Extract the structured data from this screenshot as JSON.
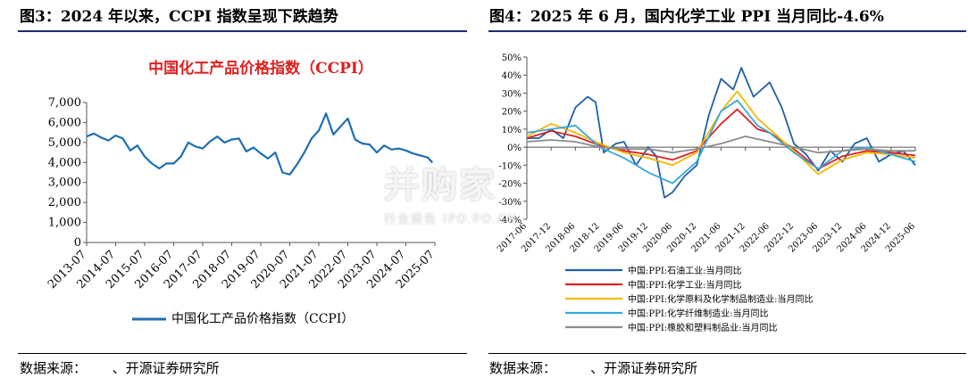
{
  "left": {
    "figure_title": "图3：2024 年以来，CCPI 指数呈现下跌趋势",
    "source": "数据来源：      、开源证券研究所"
  },
  "right": {
    "figure_title": "图4：2025 年 6 月，国内化学工业 PPI 当月同比-4.6%",
    "source": "数据来源：        、开源证券研究所"
  },
  "watermark": {
    "main": "并购家",
    "sub": "行业报告 IPO.PO.CN"
  },
  "chart_data": [
    {
      "type": "line",
      "title": "中国化工产品价格指数（CCPI）",
      "title_color": "#e02020",
      "x_ticks": [
        "2013-07",
        "2014-07",
        "2015-07",
        "2016-07",
        "2017-07",
        "2018-07",
        "2019-07",
        "2020-07",
        "2021-07",
        "2022-07",
        "2023-07",
        "2024-07",
        "2025-07"
      ],
      "xlim": [
        "2013-07",
        "2025-07"
      ],
      "ylim": [
        0,
        7000
      ],
      "y_ticks": [
        "0",
        "1,000",
        "2,000",
        "3,000",
        "4,000",
        "5,000",
        "6,000",
        "7,000"
      ],
      "y_tick_values": [
        0,
        1000,
        2000,
        3000,
        4000,
        5000,
        6000,
        7000
      ],
      "grid": false,
      "legend": "bottom",
      "series": [
        {
          "name": "中国化工产品价格指数（CCPI）",
          "color": "#1f6fb2",
          "points": [
            [
              "2013-07",
              5300
            ],
            [
              "2013-10",
              5450
            ],
            [
              "2014-01",
              5250
            ],
            [
              "2014-04",
              5100
            ],
            [
              "2014-07",
              5350
            ],
            [
              "2014-10",
              5200
            ],
            [
              "2015-01",
              4600
            ],
            [
              "2015-04",
              4850
            ],
            [
              "2015-07",
              4300
            ],
            [
              "2015-10",
              3950
            ],
            [
              "2016-01",
              3700
            ],
            [
              "2016-04",
              3950
            ],
            [
              "2016-07",
              3950
            ],
            [
              "2016-10",
              4300
            ],
            [
              "2017-01",
              5000
            ],
            [
              "2017-04",
              4800
            ],
            [
              "2017-07",
              4700
            ],
            [
              "2017-10",
              5050
            ],
            [
              "2018-01",
              5300
            ],
            [
              "2018-04",
              5000
            ],
            [
              "2018-07",
              5150
            ],
            [
              "2018-10",
              5200
            ],
            [
              "2019-01",
              4550
            ],
            [
              "2019-04",
              4750
            ],
            [
              "2019-07",
              4450
            ],
            [
              "2019-10",
              4200
            ],
            [
              "2020-01",
              4500
            ],
            [
              "2020-04",
              3500
            ],
            [
              "2020-07",
              3400
            ],
            [
              "2020-10",
              3900
            ],
            [
              "2021-01",
              4500
            ],
            [
              "2021-04",
              5200
            ],
            [
              "2021-07",
              5600
            ],
            [
              "2021-10",
              6450
            ],
            [
              "2022-01",
              5400
            ],
            [
              "2022-04",
              5800
            ],
            [
              "2022-07",
              6200
            ],
            [
              "2022-10",
              5150
            ],
            [
              "2023-01",
              4950
            ],
            [
              "2023-04",
              4900
            ],
            [
              "2023-07",
              4500
            ],
            [
              "2023-10",
              4850
            ],
            [
              "2024-01",
              4650
            ],
            [
              "2024-04",
              4700
            ],
            [
              "2024-07",
              4600
            ],
            [
              "2024-10",
              4450
            ],
            [
              "2025-01",
              4350
            ],
            [
              "2025-04",
              4250
            ],
            [
              "2025-06",
              4000
            ]
          ]
        }
      ]
    },
    {
      "type": "line",
      "title": "",
      "x_ticks": [
        "2017-06",
        "2017-12",
        "2018-06",
        "2018-12",
        "2019-06",
        "2019-12",
        "2020-06",
        "2020-12",
        "2021-06",
        "2021-12",
        "2022-06",
        "2022-12",
        "2023-06",
        "2023-12",
        "2024-06",
        "2024-12",
        "2025-06"
      ],
      "xlim": [
        "2017-06",
        "2025-06"
      ],
      "ylim": [
        -40,
        50
      ],
      "y_ticks": [
        "-40%",
        "-30%",
        "-20%",
        "-10%",
        "0%",
        "10%",
        "20%",
        "30%",
        "40%",
        "50%"
      ],
      "y_tick_values": [
        -40,
        -30,
        -20,
        -10,
        0,
        10,
        20,
        30,
        40,
        50
      ],
      "grid": false,
      "legend": "bottom",
      "series": [
        {
          "name": "中国:PPI:石油工业:当月同比",
          "color": "#1f5fa8",
          "points": [
            [
              "2017-06",
              5
            ],
            [
              "2017-09",
              5
            ],
            [
              "2017-12",
              10
            ],
            [
              "2018-03",
              5
            ],
            [
              "2018-06",
              22
            ],
            [
              "2018-09",
              28
            ],
            [
              "2018-11",
              25
            ],
            [
              "2019-01",
              -3
            ],
            [
              "2019-04",
              2
            ],
            [
              "2019-06",
              3
            ],
            [
              "2019-09",
              -10
            ],
            [
              "2019-12",
              0
            ],
            [
              "2020-02",
              -5
            ],
            [
              "2020-04",
              -28
            ],
            [
              "2020-06",
              -25
            ],
            [
              "2020-09",
              -16
            ],
            [
              "2020-12",
              -10
            ],
            [
              "2021-03",
              18
            ],
            [
              "2021-06",
              38
            ],
            [
              "2021-09",
              32
            ],
            [
              "2021-11",
              44
            ],
            [
              "2022-02",
              28
            ],
            [
              "2022-06",
              36
            ],
            [
              "2022-09",
              22
            ],
            [
              "2022-12",
              2
            ],
            [
              "2023-03",
              -4
            ],
            [
              "2023-06",
              -13
            ],
            [
              "2023-09",
              -2
            ],
            [
              "2023-12",
              -8
            ],
            [
              "2024-03",
              2
            ],
            [
              "2024-06",
              5
            ],
            [
              "2024-09",
              -8
            ],
            [
              "2024-12",
              -4
            ],
            [
              "2025-03",
              -2
            ],
            [
              "2025-06",
              -10
            ]
          ]
        },
        {
          "name": "中国:PPI:化学工业:当月同比",
          "color": "#e32020",
          "points": [
            [
              "2017-06",
              5
            ],
            [
              "2017-12",
              9
            ],
            [
              "2018-06",
              6
            ],
            [
              "2018-12",
              1
            ],
            [
              "2019-06",
              -2
            ],
            [
              "2019-12",
              -4
            ],
            [
              "2020-06",
              -7
            ],
            [
              "2020-12",
              -2
            ],
            [
              "2021-06",
              13
            ],
            [
              "2021-10",
              21
            ],
            [
              "2022-03",
              10
            ],
            [
              "2022-06",
              8
            ],
            [
              "2022-12",
              -1
            ],
            [
              "2023-06",
              -12
            ],
            [
              "2023-12",
              -5
            ],
            [
              "2024-06",
              -2
            ],
            [
              "2024-12",
              -3
            ],
            [
              "2025-06",
              -4.6
            ]
          ]
        },
        {
          "name": "中国:PPI:化学原料及化学制品制造业:当月同比",
          "color": "#f5b800",
          "points": [
            [
              "2017-06",
              6
            ],
            [
              "2017-12",
              13
            ],
            [
              "2018-06",
              8
            ],
            [
              "2018-12",
              2
            ],
            [
              "2019-06",
              -3
            ],
            [
              "2019-12",
              -6
            ],
            [
              "2020-06",
              -10
            ],
            [
              "2020-12",
              -3
            ],
            [
              "2021-06",
              20
            ],
            [
              "2021-10",
              31
            ],
            [
              "2022-03",
              16
            ],
            [
              "2022-06",
              10
            ],
            [
              "2022-12",
              -2
            ],
            [
              "2023-06",
              -15
            ],
            [
              "2023-12",
              -7
            ],
            [
              "2024-06",
              -3
            ],
            [
              "2024-12",
              -4
            ],
            [
              "2025-06",
              -6
            ]
          ]
        },
        {
          "name": "中国:PPI:化学纤维制造业:当月同比",
          "color": "#36a9e0",
          "points": [
            [
              "2017-06",
              8
            ],
            [
              "2017-12",
              10
            ],
            [
              "2018-06",
              12
            ],
            [
              "2018-12",
              0
            ],
            [
              "2019-06",
              -6
            ],
            [
              "2019-12",
              -14
            ],
            [
              "2020-06",
              -20
            ],
            [
              "2020-12",
              -8
            ],
            [
              "2021-06",
              20
            ],
            [
              "2021-10",
              26
            ],
            [
              "2022-03",
              12
            ],
            [
              "2022-06",
              8
            ],
            [
              "2022-12",
              -3
            ],
            [
              "2023-06",
              -12
            ],
            [
              "2023-12",
              -2
            ],
            [
              "2024-06",
              0
            ],
            [
              "2024-12",
              -4
            ],
            [
              "2025-06",
              -8
            ]
          ]
        },
        {
          "name": "中国:PPI:橡胶和塑料制品业:当月同比",
          "color": "#8c8c8c",
          "points": [
            [
              "2017-06",
              3
            ],
            [
              "2017-12",
              4
            ],
            [
              "2018-06",
              3
            ],
            [
              "2018-12",
              0
            ],
            [
              "2019-06",
              -1
            ],
            [
              "2019-12",
              -1
            ],
            [
              "2020-06",
              -3
            ],
            [
              "2020-12",
              -1
            ],
            [
              "2021-06",
              2
            ],
            [
              "2021-12",
              6
            ],
            [
              "2022-06",
              3
            ],
            [
              "2022-12",
              0
            ],
            [
              "2023-06",
              -3
            ],
            [
              "2023-12",
              -2
            ],
            [
              "2024-06",
              -1
            ],
            [
              "2024-12",
              -2
            ],
            [
              "2025-06",
              -2
            ]
          ]
        }
      ]
    }
  ]
}
